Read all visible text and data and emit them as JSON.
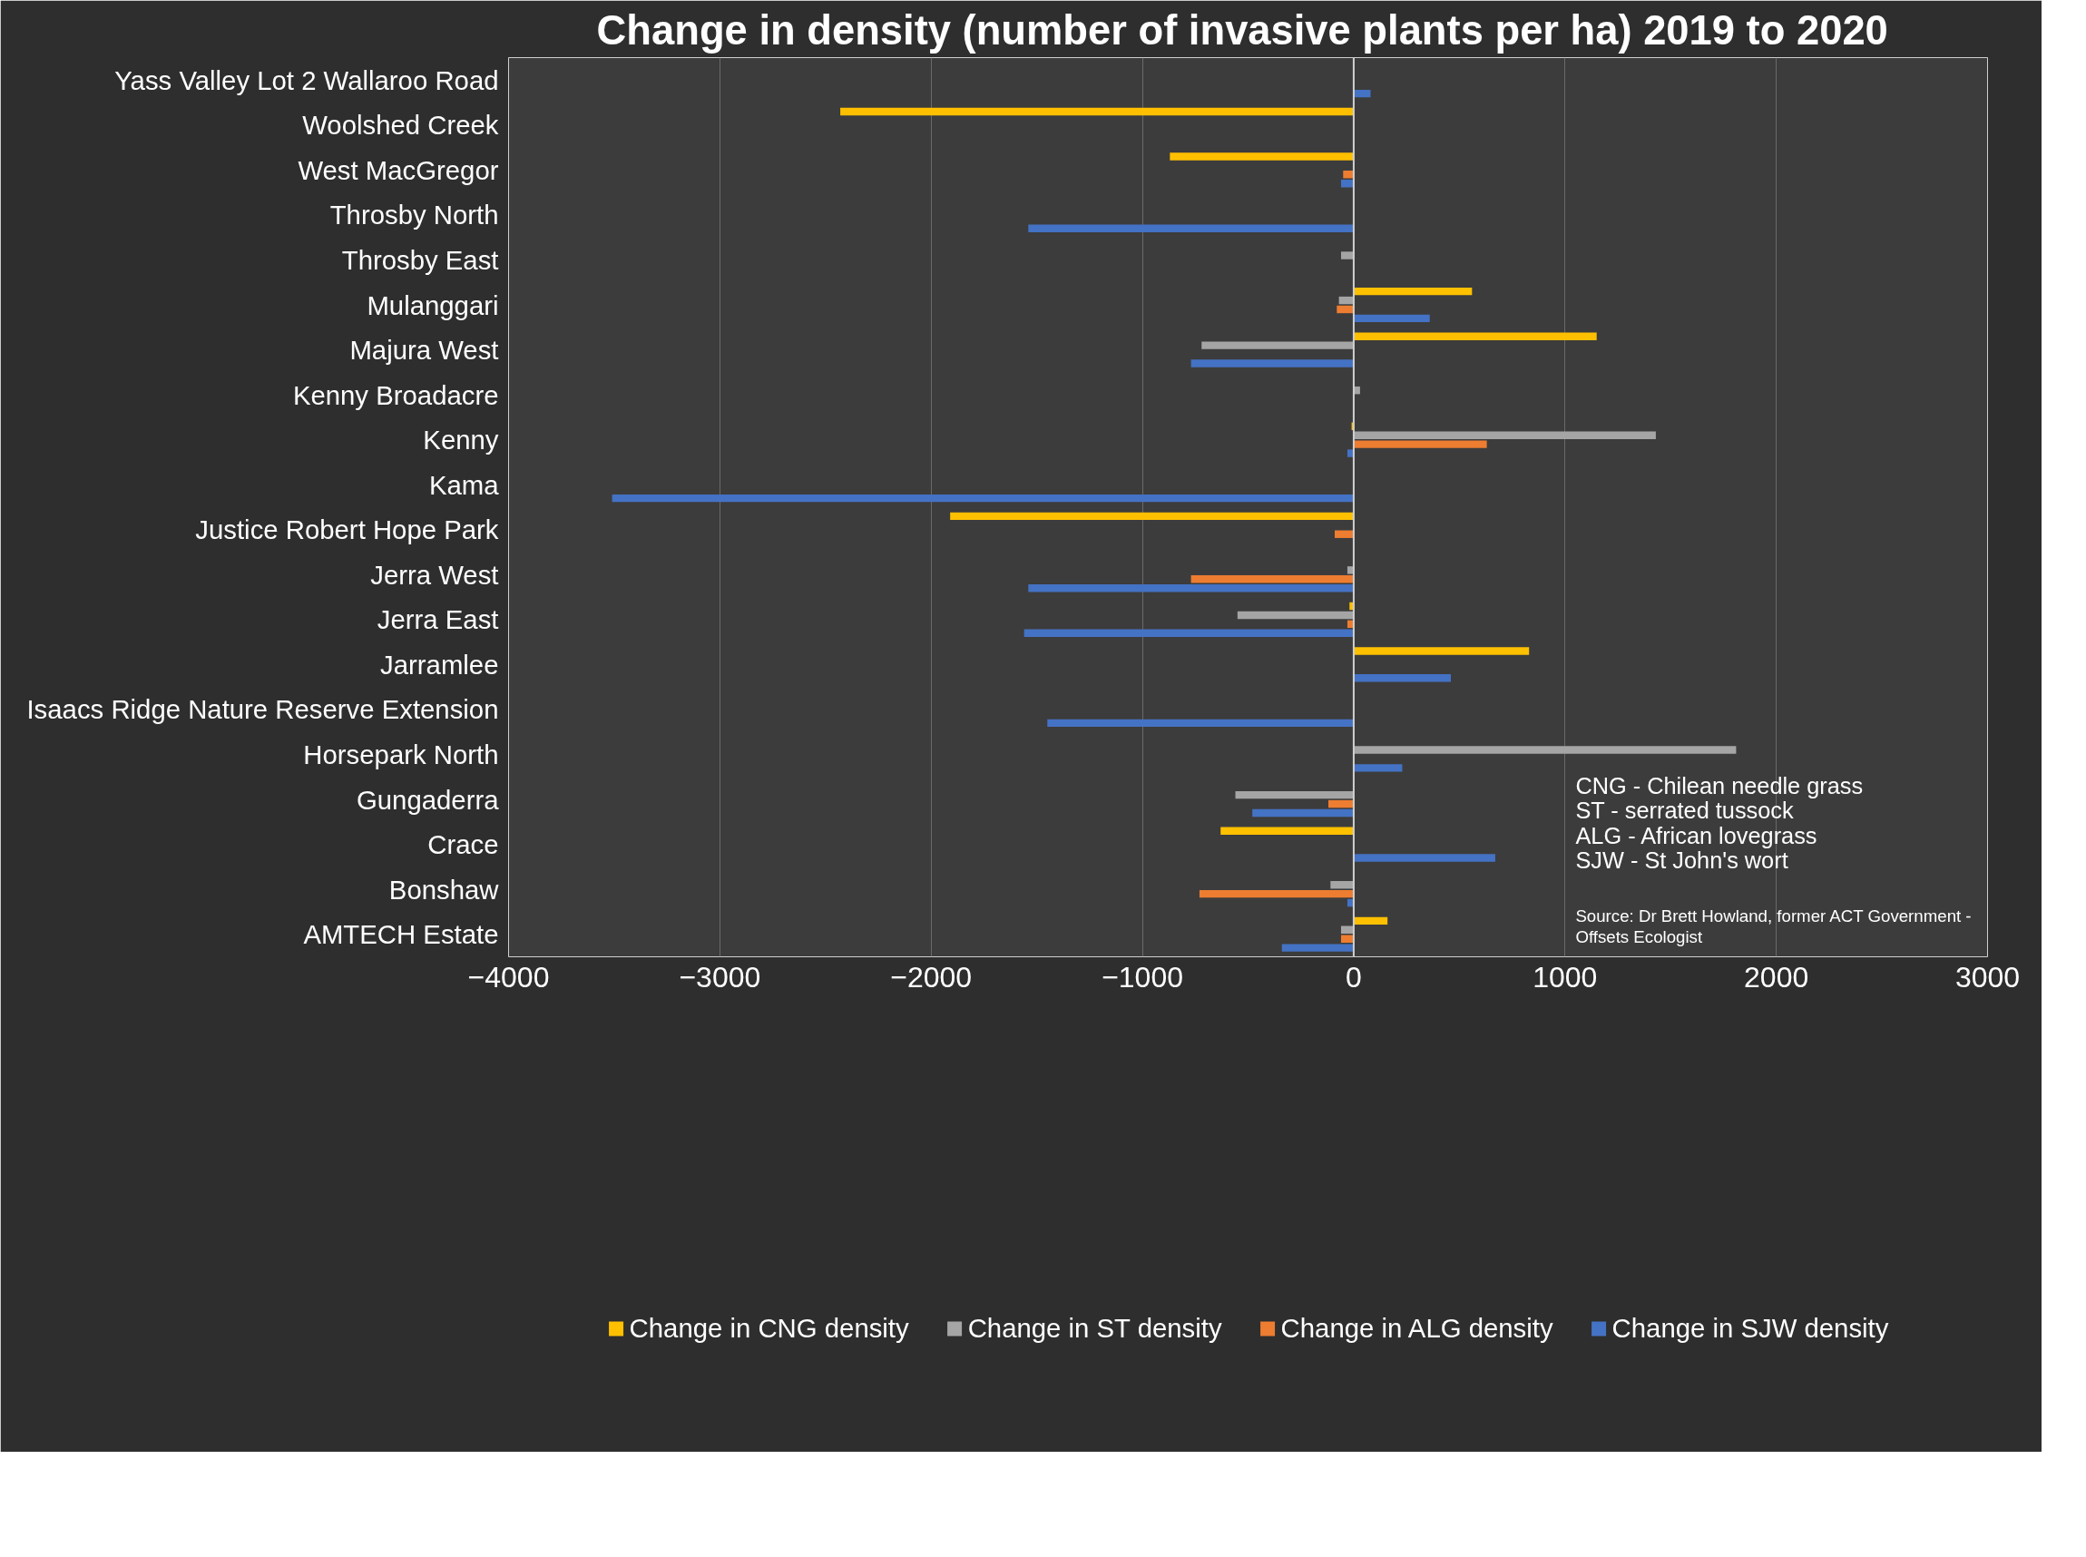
{
  "chart_data": {
    "type": "bar",
    "orientation": "horizontal",
    "title": "Change in density (number of invasive plants per ha)  2019 to 2020",
    "categories": [
      "Yass Valley Lot 2 Wallaroo Road",
      "Woolshed Creek",
      "West MacGregor",
      "Throsby North",
      "Throsby East",
      "Mulanggari",
      "Majura West",
      "Kenny Broadacre",
      "Kenny",
      "Kama",
      "Justice Robert Hope Park",
      "Jerra West",
      "Jerra East",
      "Jarramlee",
      "Isaacs Ridge Nature Reserve Extension",
      "Horsepark North",
      "Gungaderra",
      "Crace",
      "Bonshaw",
      "AMTECH Estate"
    ],
    "series": [
      {
        "name": "Change in CNG density",
        "color": "#ffc000",
        "values": [
          0,
          -2430,
          -870,
          0,
          0,
          560,
          1150,
          0,
          -10,
          0,
          -1910,
          0,
          -20,
          830,
          0,
          0,
          0,
          -630,
          0,
          160
        ]
      },
      {
        "name": "Change in ST density",
        "color": "#a5a5a5",
        "values": [
          0,
          0,
          0,
          0,
          -60,
          -70,
          -720,
          30,
          1430,
          0,
          0,
          -30,
          -550,
          0,
          0,
          1810,
          -560,
          0,
          -110,
          -60
        ]
      },
      {
        "name": "Change in ALG density",
        "color": "#ed7d31",
        "values": [
          0,
          0,
          -50,
          0,
          0,
          -80,
          0,
          0,
          630,
          0,
          -90,
          -770,
          -30,
          0,
          0,
          0,
          -120,
          0,
          -730,
          -60
        ]
      },
      {
        "name": "Change in SJW density",
        "color": "#4472c4",
        "values": [
          80,
          0,
          -60,
          -1540,
          0,
          360,
          -770,
          0,
          -30,
          -3510,
          0,
          -1540,
          -1560,
          460,
          -1450,
          230,
          -480,
          670,
          -30,
          -340
        ]
      }
    ],
    "xlim": [
      -4000,
      3000
    ],
    "xticks": [
      -4000,
      -3000,
      -2000,
      -1000,
      0,
      1000,
      2000,
      3000
    ],
    "grid": "x",
    "legend": "bottom",
    "annotations": [
      "CNG - Chilean needle grass",
      "ST - serrated tussock",
      "ALG - African lovegrass",
      "SJW - St John's wort",
      "Source: Dr Brett Howland, former ACT Government - Offsets Ecologist"
    ]
  }
}
